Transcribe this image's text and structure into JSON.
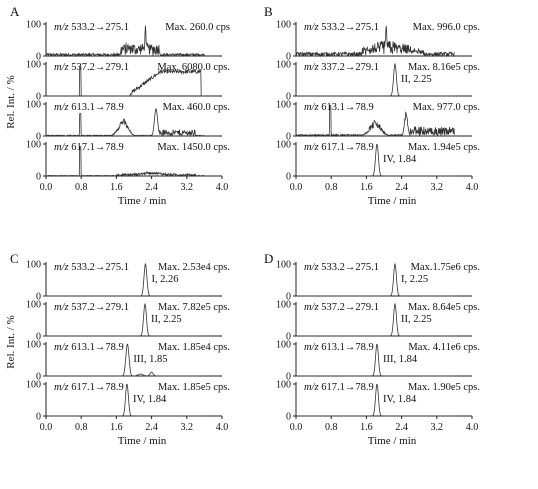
{
  "chart_data": [
    {
      "type": "line",
      "panel": "A",
      "xlabel": "Time / min",
      "ylabel": "Rel. Int. / %",
      "xlim": [
        0.0,
        4.0
      ],
      "x_ticks": [
        "0.0",
        "0.8",
        "1.6",
        "2.4",
        "3.2",
        "4.0"
      ],
      "y_tick": "100",
      "traces": [
        {
          "mz_prefix": "m/z",
          "mz": "533.2→275.1",
          "max": "Max. 260.0 cps",
          "peak_label": "",
          "shape": "noise_spike",
          "peak_time": 2.26
        },
        {
          "mz_prefix": "m/z",
          "mz": "537.2→279.1",
          "max": "Max. 6080.0 cps.",
          "peak_label": "",
          "shape": "plateau",
          "peak_time": 0.78
        },
        {
          "mz_prefix": "m/z",
          "mz": "613.1→78.9",
          "max": "Max. 460.0 cps.",
          "peak_label": "",
          "shape": "twin_hump",
          "peak_time": 2.5
        },
        {
          "mz_prefix": "m/z",
          "mz": "617.1→78.9",
          "max": "Max. 1450.0 cps.",
          "peak_label": "",
          "shape": "spike_flat",
          "peak_time": 0.78
        }
      ]
    },
    {
      "type": "line",
      "panel": "B",
      "xlabel": "Time / min",
      "ylabel": "",
      "xlim": [
        0.0,
        4.0
      ],
      "x_ticks": [
        "0.0",
        "0.8",
        "1.6",
        "2.4",
        "3.2",
        "4.0"
      ],
      "y_tick": "100",
      "traces": [
        {
          "mz_prefix": "m/z",
          "mz": "533.2→275.1",
          "max": "Max. 996.0 cps.",
          "peak_label": "",
          "shape": "noisy_cluster",
          "peak_time": 2.0
        },
        {
          "mz_prefix": "m/z",
          "mz": "337.2→279.1",
          "max": "Max. 8.16e5 cps.",
          "peak_label": "II, 2.25",
          "shape": "peak",
          "peak_time": 2.25
        },
        {
          "mz_prefix": "m/z",
          "mz": "613.1→78.9",
          "max": "Max. 977.0 cps.",
          "peak_label": "",
          "shape": "twin_hump_noise",
          "peak_time": 2.5
        },
        {
          "mz_prefix": "m/z",
          "mz": "617.1→78.9",
          "max": "Max. 1.94e5 cps.",
          "peak_label": "IV, 1.84",
          "shape": "peak",
          "peak_time": 1.84
        }
      ]
    },
    {
      "type": "line",
      "panel": "C",
      "xlabel": "Time / min",
      "ylabel": "Rel. Int. / %",
      "xlim": [
        0.0,
        4.0
      ],
      "x_ticks": [
        "0.0",
        "0.8",
        "1.6",
        "2.4",
        "3.2",
        "4.0"
      ],
      "y_tick": "100",
      "traces": [
        {
          "mz_prefix": "m/z",
          "mz": "533.2→275.1",
          "max": "Max. 2.53e4 cps.",
          "peak_label": "I, 2.26",
          "shape": "peak",
          "peak_time": 2.26
        },
        {
          "mz_prefix": "m/z",
          "mz": "537.2→279.1",
          "max": "Max. 7.82e5 cps.",
          "peak_label": "II, 2.25",
          "shape": "peak",
          "peak_time": 2.25
        },
        {
          "mz_prefix": "m/z",
          "mz": "613.1→78.9",
          "max": "Max. 1.85e4 cps.",
          "peak_label": "III, 1.85",
          "shape": "peak_tail",
          "peak_time": 1.85
        },
        {
          "mz_prefix": "m/z",
          "mz": "617.1→78.9",
          "max": "Max. 1.85e5 cps.",
          "peak_label": "IV, 1.84",
          "shape": "peak",
          "peak_time": 1.84
        }
      ]
    },
    {
      "type": "line",
      "panel": "D",
      "xlabel": "Time / min",
      "ylabel": "",
      "xlim": [
        0.0,
        4.0
      ],
      "x_ticks": [
        "0.0",
        "0.8",
        "1.6",
        "2.4",
        "3.2",
        "4.0"
      ],
      "y_tick": "100",
      "traces": [
        {
          "mz_prefix": "m/z",
          "mz": "533.2→275.1",
          "max": "Max.1.75e6 cps.",
          "peak_label": "I,  2.25",
          "shape": "peak",
          "peak_time": 2.25
        },
        {
          "mz_prefix": "m/z",
          "mz": "537.2→279.1",
          "max": "Max. 8.64e5 cps.",
          "peak_label": "II, 2.25",
          "shape": "peak",
          "peak_time": 2.25
        },
        {
          "mz_prefix": "m/z",
          "mz": "613.1→78.9",
          "max": "Max. 4.11e6 cps.",
          "peak_label": "III, 1.84",
          "shape": "peak",
          "peak_time": 1.84
        },
        {
          "mz_prefix": "m/z",
          "mz": "617.1→78.9",
          "max": "Max. 1.90e5 cps.",
          "peak_label": "IV, 1.84",
          "shape": "peak",
          "peak_time": 1.84
        }
      ]
    }
  ]
}
